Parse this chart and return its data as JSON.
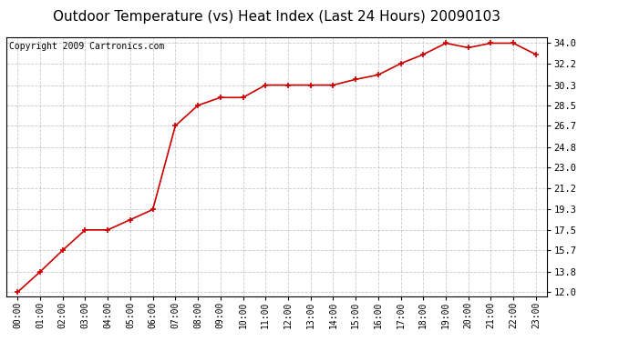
{
  "title": "Outdoor Temperature (vs) Heat Index (Last 24 Hours) 20090103",
  "copyright": "Copyright 2009 Cartronics.com",
  "x_labels": [
    "00:00",
    "01:00",
    "02:00",
    "03:00",
    "04:00",
    "05:00",
    "06:00",
    "07:00",
    "08:00",
    "09:00",
    "10:00",
    "11:00",
    "12:00",
    "13:00",
    "14:00",
    "15:00",
    "16:00",
    "17:00",
    "18:00",
    "19:00",
    "20:00",
    "21:00",
    "22:00",
    "23:00"
  ],
  "y_values": [
    12.0,
    13.8,
    15.7,
    17.5,
    17.5,
    18.4,
    19.3,
    26.7,
    28.5,
    29.2,
    29.2,
    30.3,
    30.3,
    30.3,
    30.3,
    30.8,
    31.2,
    32.2,
    33.0,
    34.0,
    33.6,
    34.0,
    34.0,
    33.0
  ],
  "line_color": "#cc0000",
  "marker_color": "#cc0000",
  "marker_style": "+",
  "background_color": "#ffffff",
  "plot_bg_color": "#ffffff",
  "grid_color": "#bbbbbb",
  "ytick_labels": [
    "12.0",
    "13.8",
    "15.7",
    "17.5",
    "19.3",
    "21.2",
    "23.0",
    "24.8",
    "26.7",
    "28.5",
    "30.3",
    "32.2",
    "34.0"
  ],
  "ytick_values": [
    12.0,
    13.8,
    15.7,
    17.5,
    19.3,
    21.2,
    23.0,
    24.8,
    26.7,
    28.5,
    30.3,
    32.2,
    34.0
  ],
  "ylim": [
    11.6,
    34.5
  ],
  "title_fontsize": 11,
  "copyright_fontsize": 7,
  "tick_fontsize": 7,
  "ytick_fontsize": 7.5
}
